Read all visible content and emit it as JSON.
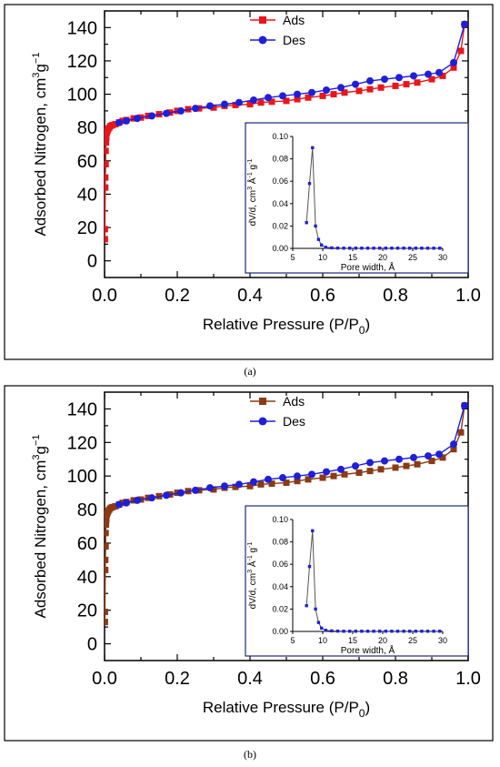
{
  "chart_data": [
    {
      "panel": "a",
      "type": "line",
      "caption": "(a)",
      "xlabel": "Relative Pressure (P/P",
      "xlabel_sub": "0",
      "xlabel_suffix": ")",
      "ylabel": "Adsorbed Nitrogen, cm",
      "ylabel_sup1": "3",
      "ylabel_mid": "g",
      "ylabel_sup2": "−1",
      "xlim": [
        0,
        1.0
      ],
      "ylim": [
        -10,
        150
      ],
      "xticks": [
        "0.0",
        "0.2",
        "0.4",
        "0.6",
        "0.8",
        "1.0"
      ],
      "yticks": [
        "0",
        "20",
        "40",
        "60",
        "80",
        "100",
        "120",
        "140"
      ],
      "legend_position": "top-center",
      "series": [
        {
          "name": "Ads",
          "color": "#e8161b",
          "marker": "square",
          "x": [
            0.001,
            0.001,
            0.002,
            0.002,
            0.003,
            0.003,
            0.004,
            0.005,
            0.006,
            0.008,
            0.01,
            0.013,
            0.017,
            0.022,
            0.03,
            0.04,
            0.05,
            0.06,
            0.08,
            0.1,
            0.12,
            0.15,
            0.18,
            0.2,
            0.23,
            0.26,
            0.3,
            0.33,
            0.36,
            0.4,
            0.43,
            0.46,
            0.5,
            0.53,
            0.56,
            0.6,
            0.63,
            0.66,
            0.7,
            0.73,
            0.76,
            0.8,
            0.83,
            0.86,
            0.9,
            0.93,
            0.96,
            0.98,
            0.99
          ],
          "y": [
            13,
            19,
            44,
            50,
            58,
            66,
            71,
            74,
            77,
            78,
            79,
            80,
            81,
            81.5,
            82,
            83,
            84,
            84.5,
            85.5,
            86,
            87,
            88,
            89,
            90,
            91,
            91.5,
            92,
            93,
            93.5,
            94,
            95,
            95.5,
            96,
            97,
            98,
            99,
            100,
            101,
            102,
            103,
            104,
            105,
            106,
            107,
            109,
            111,
            116,
            126,
            142
          ]
        },
        {
          "name": "Des",
          "color": "#1f1fd8",
          "marker": "circle",
          "x": [
            0.99,
            0.96,
            0.92,
            0.89,
            0.85,
            0.81,
            0.77,
            0.73,
            0.69,
            0.65,
            0.61,
            0.57,
            0.53,
            0.49,
            0.45,
            0.41,
            0.37,
            0.33,
            0.29,
            0.25,
            0.21,
            0.17,
            0.13,
            0.09,
            0.06,
            0.04
          ],
          "y": [
            142,
            119,
            113,
            112,
            111,
            110,
            109,
            108,
            106,
            104,
            102.5,
            101,
            100,
            99,
            98,
            96.5,
            95,
            94,
            93,
            91.5,
            90,
            88.5,
            87,
            85.5,
            84,
            83
          ]
        }
      ],
      "inset": {
        "type": "line",
        "xlabel": "Pore width, Å",
        "ylabel": "dV/d, cm",
        "ylabel_sup1": "3",
        "ylabel_mid": " Å",
        "ylabel_sup2": "-1",
        "ylabel_end": " g",
        "ylabel_sup3": "-1",
        "xlim": [
          5,
          30
        ],
        "ylim": [
          0,
          0.1
        ],
        "xticks": [
          "5",
          "10",
          "15",
          "20",
          "25",
          "30"
        ],
        "yticks": [
          "0.00",
          "0.02",
          "0.04",
          "0.06",
          "0.08",
          "0.10"
        ],
        "x": [
          7.3,
          7.8,
          8.3,
          8.8,
          9.3,
          9.8,
          10.5,
          11.5,
          12.5,
          13.5,
          14.5,
          15.5,
          16.5,
          17.5,
          18.5,
          19.5,
          20.5,
          21.5,
          22.5,
          23.5,
          24.5,
          25.5,
          26.5,
          27.5,
          28.5,
          29.5
        ],
        "y": [
          0.023,
          0.058,
          0.09,
          0.02,
          0.008,
          0.003,
          0.001,
          0.0005,
          0.0003,
          0.0002,
          0.0002,
          0.0002,
          0.0002,
          0.0002,
          0.0002,
          0.0002,
          0.0002,
          0.0002,
          0.0002,
          0.0002,
          0.0002,
          0.0002,
          0.0002,
          0.0002,
          0.0002,
          0.0002
        ],
        "color": "#1f1fd8",
        "line_color": "#555555"
      }
    },
    {
      "panel": "b",
      "type": "line",
      "caption": "(b)",
      "xlabel": "Relative Pressure (P/P",
      "xlabel_sub": "0",
      "xlabel_suffix": ")",
      "ylabel": "Adsorbed Nitrogen, cm",
      "ylabel_sup1": "3",
      "ylabel_mid": "g",
      "ylabel_sup2": "−1",
      "xlim": [
        0,
        1.0
      ],
      "ylim": [
        -10,
        150
      ],
      "xticks": [
        "0.0",
        "0.2",
        "0.4",
        "0.6",
        "0.8",
        "1.0"
      ],
      "yticks": [
        "0",
        "20",
        "40",
        "60",
        "80",
        "100",
        "120",
        "140"
      ],
      "legend_position": "top-center",
      "series": [
        {
          "name": "Ads",
          "color": "#8b3a14",
          "marker": "square",
          "x": [
            0.001,
            0.001,
            0.002,
            0.002,
            0.003,
            0.003,
            0.004,
            0.005,
            0.006,
            0.008,
            0.01,
            0.013,
            0.017,
            0.022,
            0.03,
            0.04,
            0.05,
            0.06,
            0.08,
            0.1,
            0.12,
            0.15,
            0.18,
            0.2,
            0.23,
            0.26,
            0.3,
            0.33,
            0.36,
            0.4,
            0.43,
            0.46,
            0.5,
            0.53,
            0.56,
            0.6,
            0.63,
            0.66,
            0.7,
            0.73,
            0.76,
            0.8,
            0.83,
            0.86,
            0.9,
            0.93,
            0.96,
            0.98,
            0.99
          ],
          "y": [
            13,
            19,
            44,
            50,
            58,
            66,
            71,
            74,
            77,
            78,
            79,
            80,
            81,
            81.5,
            82,
            83,
            84,
            84.5,
            85.5,
            86,
            87,
            88,
            89,
            90,
            91,
            91.5,
            92,
            93,
            93.5,
            94,
            95,
            95.5,
            96,
            97,
            98,
            99,
            100,
            101,
            102,
            103,
            104,
            105,
            106,
            107,
            109,
            111,
            116,
            126,
            142
          ]
        },
        {
          "name": "Des",
          "color": "#1f1fd8",
          "marker": "circle",
          "x": [
            0.99,
            0.96,
            0.92,
            0.89,
            0.85,
            0.81,
            0.77,
            0.73,
            0.69,
            0.65,
            0.61,
            0.57,
            0.53,
            0.49,
            0.45,
            0.41,
            0.37,
            0.33,
            0.29,
            0.25,
            0.21,
            0.17,
            0.13,
            0.09,
            0.06,
            0.04
          ],
          "y": [
            142,
            119,
            113,
            112,
            111,
            110,
            109,
            108,
            106,
            104,
            102.5,
            101,
            100,
            99,
            98,
            96.5,
            95,
            94,
            93,
            91.5,
            90,
            88.5,
            87,
            85.5,
            84,
            83
          ]
        }
      ],
      "inset": {
        "type": "line",
        "xlabel": "Pore width, Å",
        "ylabel": "dV/d, cm",
        "ylabel_sup1": "3",
        "ylabel_mid": " Å",
        "ylabel_sup2": "-1",
        "ylabel_end": " g",
        "ylabel_sup3": "-1",
        "xlim": [
          5,
          30
        ],
        "ylim": [
          0,
          0.1
        ],
        "xticks": [
          "5",
          "10",
          "15",
          "20",
          "25",
          "30"
        ],
        "yticks": [
          "0.00",
          "0.02",
          "0.04",
          "0.06",
          "0.08",
          "0.10"
        ],
        "x": [
          7.3,
          7.8,
          8.3,
          8.8,
          9.3,
          9.8,
          10.5,
          11.5,
          12.5,
          13.5,
          14.5,
          15.5,
          16.5,
          17.5,
          18.5,
          19.5,
          20.5,
          21.5,
          22.5,
          23.5,
          24.5,
          25.5,
          26.5,
          27.5,
          28.5,
          29.5
        ],
        "y": [
          0.023,
          0.058,
          0.09,
          0.02,
          0.008,
          0.003,
          0.001,
          0.0005,
          0.0003,
          0.0002,
          0.0002,
          0.0002,
          0.0002,
          0.0002,
          0.0002,
          0.0002,
          0.0002,
          0.0002,
          0.0002,
          0.0002,
          0.0002,
          0.0002,
          0.0002,
          0.0002,
          0.0002,
          0.0002
        ],
        "color": "#1f1fd8",
        "line_color": "#555555"
      }
    }
  ]
}
